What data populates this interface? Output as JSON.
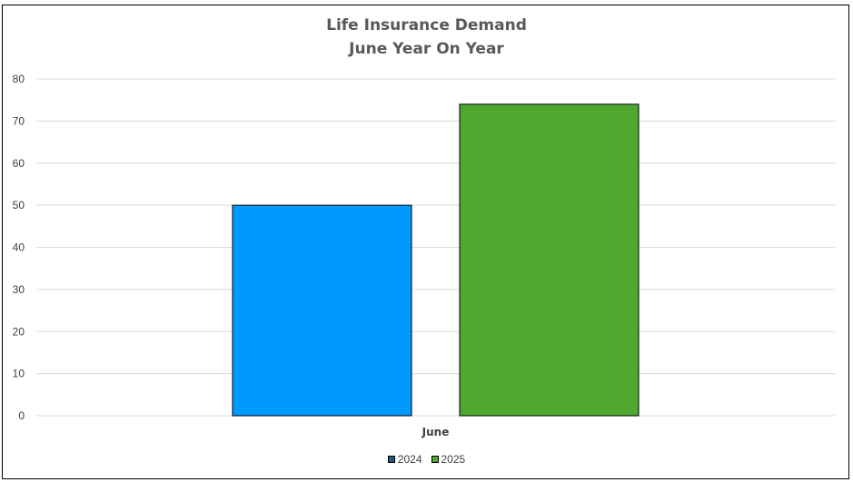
{
  "chart_data": {
    "type": "bar",
    "title": "Life Insurance Demand",
    "subtitle": "June Year On Year",
    "categories": [
      "June"
    ],
    "series": [
      {
        "name": "2024",
        "values": [
          50
        ],
        "color": "#0099FF",
        "legend_color": "#1F5C78"
      },
      {
        "name": "2025",
        "values": [
          74
        ],
        "color": "#4EA72E",
        "legend_color": "#4EA72E"
      }
    ],
    "ylim": [
      0,
      80
    ],
    "yticks": [
      0,
      10,
      20,
      30,
      40,
      50,
      60,
      70,
      80
    ],
    "grid": true,
    "legend_position": "bottom"
  }
}
